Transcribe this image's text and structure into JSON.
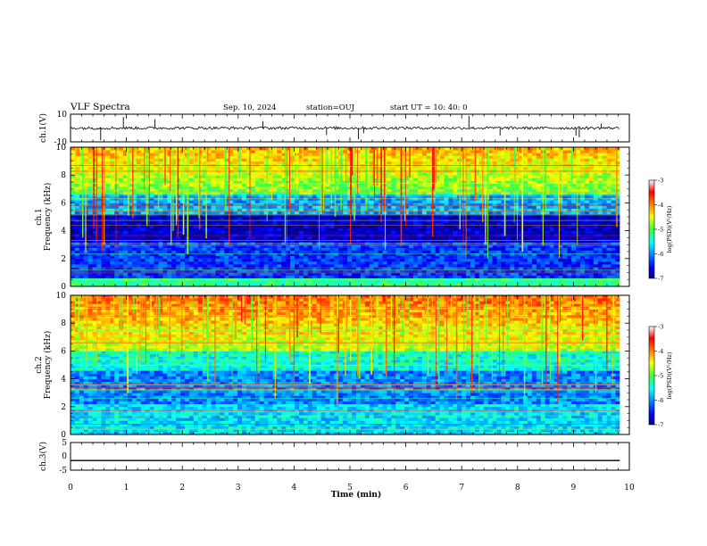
{
  "header": {
    "title": "VLF Spectra",
    "date": "Sep. 10, 2024",
    "station": "station=OUJ",
    "start": "start UT =  10: 40: 0"
  },
  "chart_data": [
    {
      "type": "line",
      "name": "ch1-waveform",
      "ylabel": "ch.1(V)",
      "ylim": [
        -10,
        10
      ],
      "yticks": [
        "10",
        "-10"
      ],
      "xlim": [
        0,
        10
      ],
      "signal": {
        "baseline": 0.0,
        "noise_amplitude": 1.0,
        "data_end_min": 9.83,
        "color": "#000000"
      }
    },
    {
      "type": "heatmap",
      "name": "ch1-spectrogram",
      "ylabel": "ch.1\nFrequency (kHz)",
      "ylim": [
        0,
        10
      ],
      "yticks": [
        "0",
        "2",
        "4",
        "6",
        "8",
        "10"
      ],
      "xlim": [
        0,
        10
      ],
      "data_end_min": 9.83,
      "colorbar": {
        "label": "log(PSD)(V²/Hz)",
        "ticks": [
          "-3",
          "-4",
          "-5",
          "-6",
          "-7"
        ],
        "range": [
          -7,
          -3
        ]
      }
    },
    {
      "type": "heatmap",
      "name": "ch2-spectrogram",
      "ylabel": "ch.2\nFrequency (kHz)",
      "ylim": [
        0,
        10
      ],
      "yticks": [
        "0",
        "2",
        "4",
        "6",
        "8",
        "10"
      ],
      "xlim": [
        0,
        10
      ],
      "data_end_min": 9.83,
      "colorbar": {
        "label": "log(PSD)(V²/Hz)",
        "ticks": [
          "-3",
          "-4",
          "-5",
          "-6",
          "-7"
        ],
        "range": [
          -7,
          -3
        ]
      }
    },
    {
      "type": "line",
      "name": "ch3-waveform",
      "ylabel": "ch.3(V)",
      "ylim": [
        -5,
        5
      ],
      "yticks": [
        "5",
        "0",
        "-5"
      ],
      "xlim": [
        0,
        10
      ],
      "signal": {
        "baseline": -1.5,
        "noise_amplitude": 0.0,
        "data_end_min": 9.83,
        "color": "#000000"
      }
    }
  ],
  "xaxis": {
    "label": "Time (min)",
    "ticks": [
      "0",
      "1",
      "2",
      "3",
      "4",
      "5",
      "6",
      "7",
      "8",
      "9",
      "10"
    ]
  }
}
